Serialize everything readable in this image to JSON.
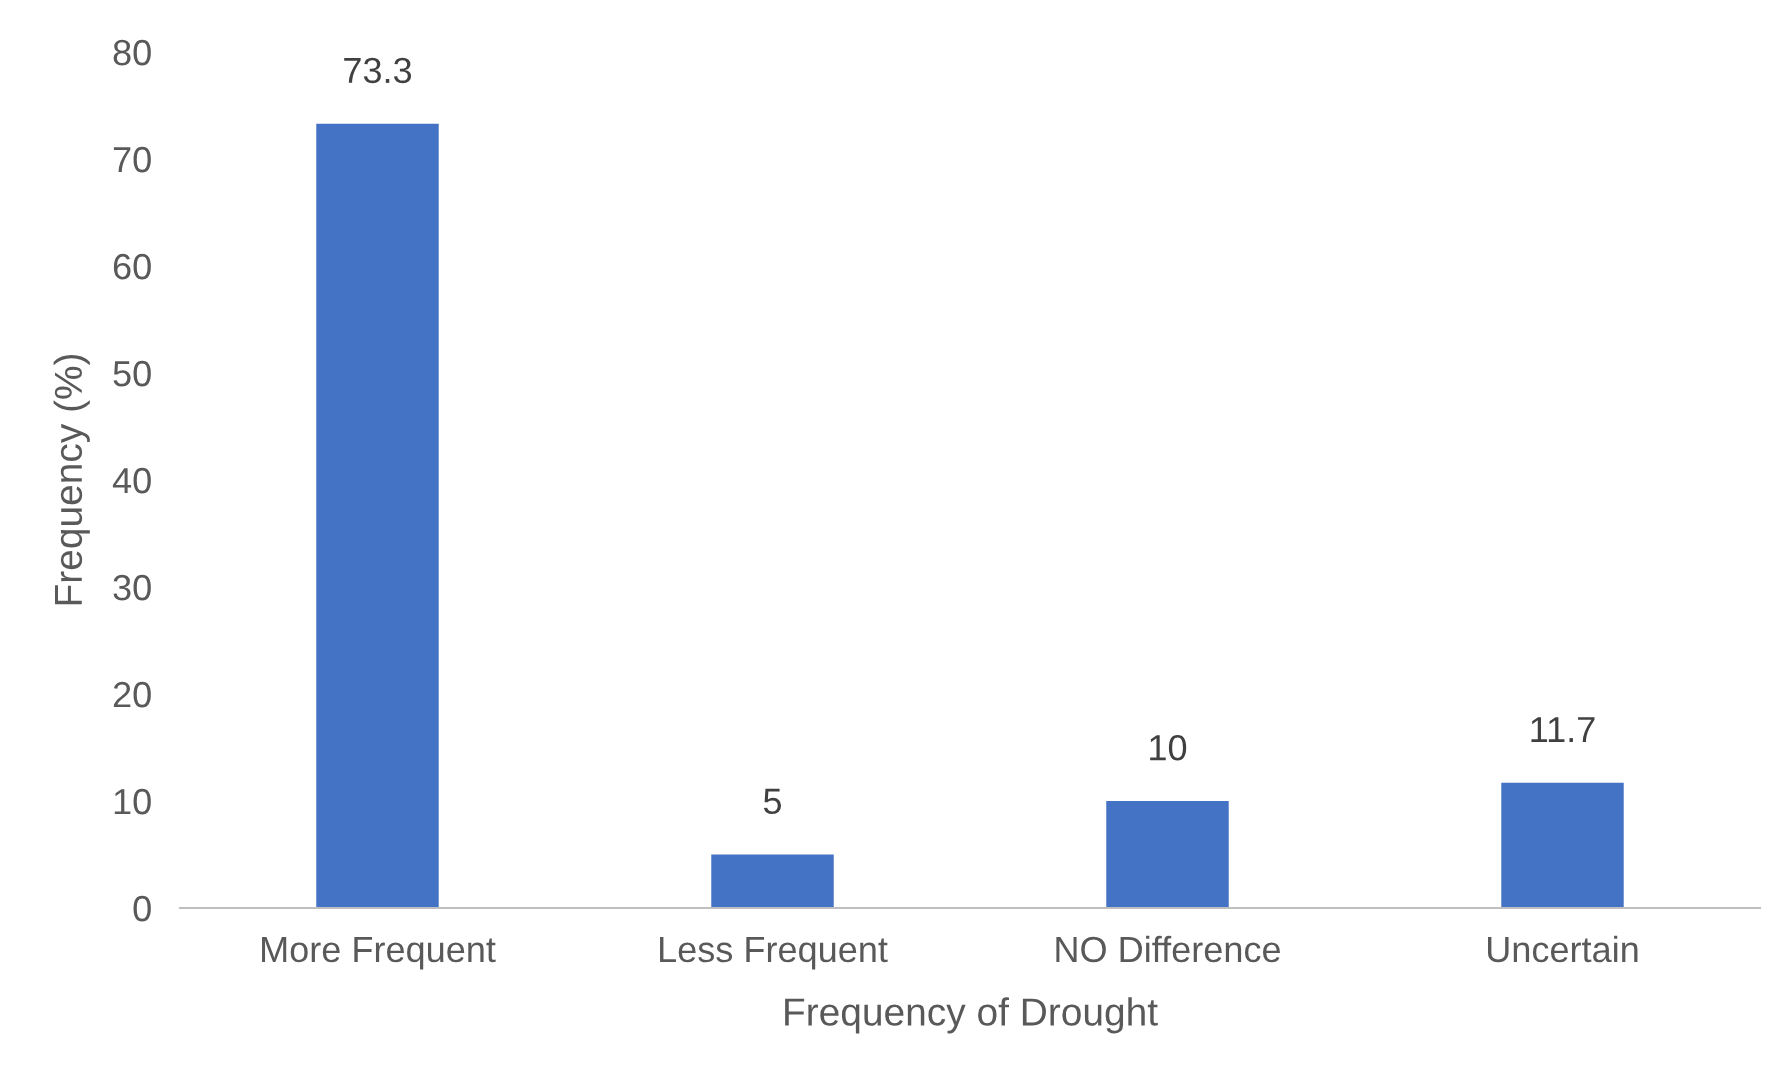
{
  "chart_data": {
    "type": "bar",
    "xlabel": "Frequency of Drought",
    "ylabel": "Frequency (%)",
    "categories": [
      "More Frequent",
      "Less Frequent",
      "NO Difference",
      "Uncertain"
    ],
    "values": [
      73.3,
      5,
      10,
      11.7
    ],
    "color": "#4472c4",
    "ylim": [
      0,
      80
    ],
    "yticks": [
      0,
      10,
      20,
      30,
      40,
      50,
      60,
      70,
      80
    ],
    "data_labels": true,
    "grid": false,
    "legend": false
  }
}
